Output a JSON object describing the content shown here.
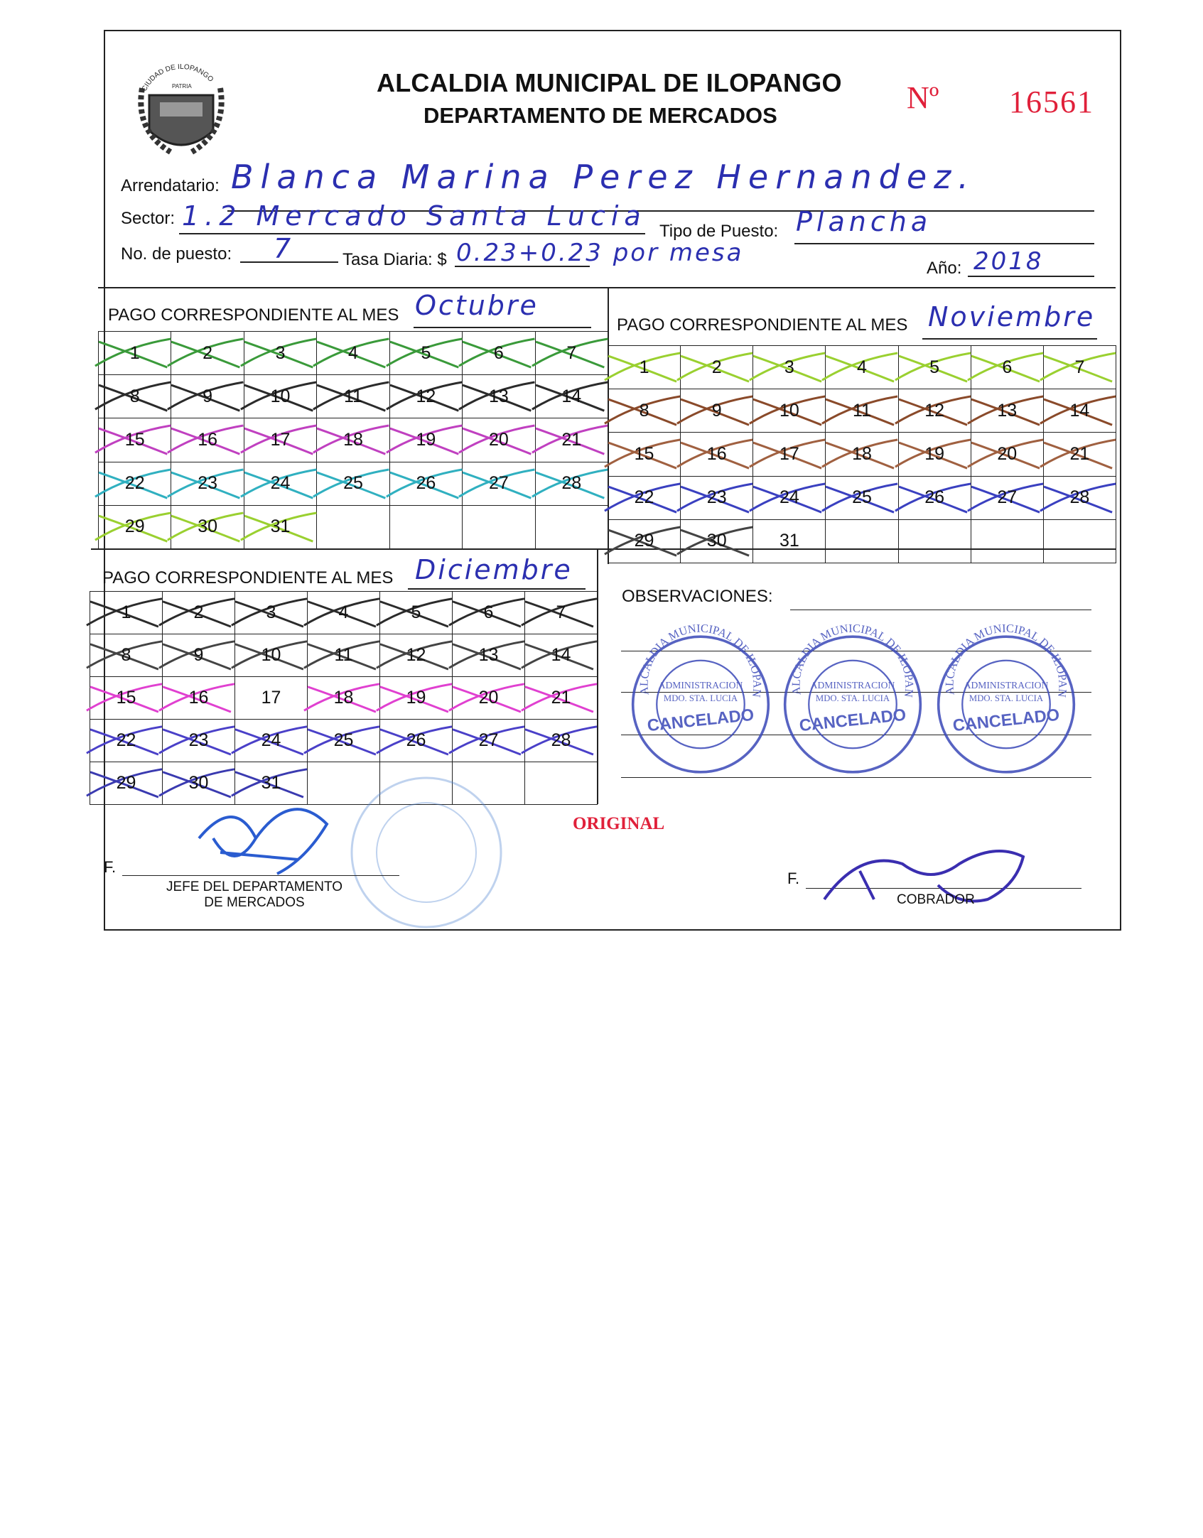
{
  "header": {
    "title": "ALCALDIA MUNICIPAL DE ILOPANGO",
    "subtitle": "DEPARTAMENTO DE MERCADOS",
    "number_label": "Nº",
    "number": "16561",
    "seal_text": "CIUDAD DE ILOPANGO · PATRIA"
  },
  "fields": {
    "arrendatario_label": "Arrendatario:",
    "arrendatario_value": "Blanca Marina Perez Hernandez.",
    "sector_label": "Sector:",
    "sector_value": "1.2 Mercado Santa Lucia",
    "tipo_label": "Tipo de Puesto:",
    "tipo_value": "Plancha",
    "puesto_label": "No. de puesto:",
    "puesto_value": "7",
    "tasa_label": "Tasa Diaria: $",
    "tasa_value": "0.23+0.23 por mesa",
    "anio_label": "Año:",
    "anio_value": "2018"
  },
  "months": [
    {
      "label": "PAGO CORRESPONDIENTE AL MES",
      "value": "Octubre",
      "days": [
        1,
        2,
        3,
        4,
        5,
        6,
        7,
        8,
        9,
        10,
        11,
        12,
        13,
        14,
        15,
        16,
        17,
        18,
        19,
        20,
        21,
        22,
        23,
        24,
        25,
        26,
        27,
        28,
        29,
        30,
        31
      ],
      "marked": [
        1,
        2,
        3,
        4,
        5,
        6,
        7,
        8,
        9,
        10,
        11,
        12,
        13,
        14,
        15,
        16,
        17,
        18,
        19,
        20,
        21,
        22,
        23,
        24,
        25,
        26,
        27,
        28,
        29,
        30,
        31
      ],
      "pen_colors": [
        "#3a9a3a",
        "#2b2b2b",
        "#c040c0",
        "#30b0c0",
        "#9ad030"
      ]
    },
    {
      "label": "PAGO CORRESPONDIENTE AL MES",
      "value": "Noviembre",
      "days": [
        1,
        2,
        3,
        4,
        5,
        6,
        7,
        8,
        9,
        10,
        11,
        12,
        13,
        14,
        15,
        16,
        17,
        18,
        19,
        20,
        21,
        22,
        23,
        24,
        25,
        26,
        27,
        28,
        29,
        30,
        31
      ],
      "marked": [
        1,
        2,
        3,
        4,
        5,
        6,
        7,
        8,
        9,
        10,
        11,
        12,
        13,
        14,
        15,
        16,
        17,
        18,
        19,
        20,
        21,
        22,
        23,
        24,
        25,
        26,
        27,
        28,
        29,
        30
      ],
      "pen_colors": [
        "#9ad030",
        "#8a4a2a",
        "#a06040",
        "#3a40c0",
        "#444444"
      ]
    },
    {
      "label": "PAGO CORRESPONDIENTE AL MES",
      "value": "Diciembre",
      "days": [
        1,
        2,
        3,
        4,
        5,
        6,
        7,
        8,
        9,
        10,
        11,
        12,
        13,
        14,
        15,
        16,
        17,
        18,
        19,
        20,
        21,
        22,
        23,
        24,
        25,
        26,
        27,
        28,
        29,
        30,
        31
      ],
      "marked": [
        1,
        2,
        3,
        4,
        5,
        6,
        7,
        8,
        9,
        10,
        11,
        12,
        13,
        14,
        15,
        16,
        18,
        19,
        20,
        21,
        22,
        23,
        24,
        25,
        26,
        27,
        28,
        29,
        30,
        31
      ],
      "pen_colors": [
        "#2b2b2b",
        "#444444",
        "#e040d0",
        "#4a40c8",
        "#3a3ab0"
      ]
    }
  ],
  "stamp": {
    "ring": "ALCALDIA MUNICIPAL DE ILOPANGO",
    "line1": "ADMINISTRACION",
    "line2": "MDO. STA. LUCIA",
    "main": "CANCELADO",
    "color": "#3a48b8"
  },
  "observaciones_label": "OBSERVACIONES:",
  "original_label": "ORIGINAL",
  "signatures": {
    "f_label": "F.",
    "jefe_line1": "JEFE DEL DEPARTAMENTO",
    "jefe_line2": "DE MERCADOS",
    "cobrador": "COBRADOR"
  },
  "colors": {
    "ink": "#2b2fb0",
    "red": "#e0203a"
  }
}
